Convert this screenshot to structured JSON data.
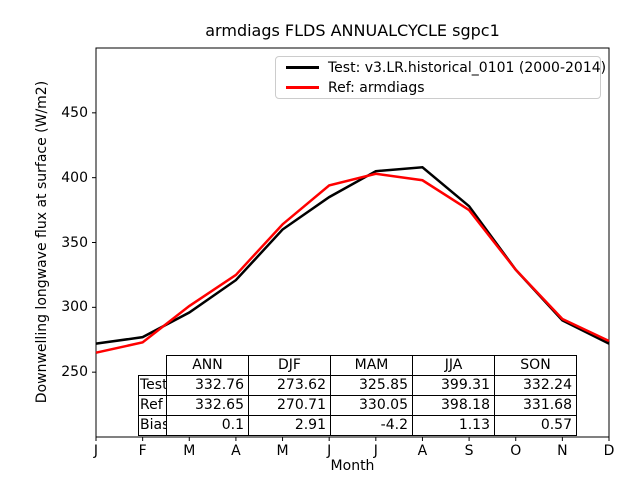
{
  "title": "armdiags FLDS ANNUALCYCLE sgpc1",
  "chart_data": {
    "type": "line",
    "title": "armdiags FLDS ANNUALCYCLE sgpc1",
    "xlabel": "Month",
    "ylabel": "Downwelling longwave flux at surface (W/m2)",
    "x_categories": [
      "J",
      "F",
      "M",
      "A",
      "M",
      "J",
      "J",
      "A",
      "S",
      "O",
      "N",
      "D"
    ],
    "xlim": [
      0,
      11
    ],
    "ylim": [
      200,
      500
    ],
    "yticks": [
      250,
      300,
      350,
      400,
      450
    ],
    "grid": false,
    "legend_position": "upper right",
    "series": [
      {
        "name": "Test: v3.LR.historical_0101 (2000-2014)",
        "color": "#000000",
        "values": [
          272,
          277,
          296,
          321,
          360,
          385,
          405,
          408,
          378,
          329,
          290,
          272
        ]
      },
      {
        "name": "Ref: armdiags",
        "color": "#ff0000",
        "values": [
          265,
          273,
          301,
          325,
          364,
          394,
          403,
          398,
          375,
          329,
          291,
          274
        ]
      }
    ]
  },
  "stats_table": {
    "columns": [
      "ANN",
      "DJF",
      "MAM",
      "JJA",
      "SON"
    ],
    "rows": [
      {
        "label": "Test",
        "values": [
          "332.76",
          "273.62",
          "325.85",
          "399.31",
          "332.24"
        ]
      },
      {
        "label": "Ref",
        "values": [
          "332.65",
          "270.71",
          "330.05",
          "398.18",
          "331.68"
        ]
      },
      {
        "label": "Bias",
        "values": [
          "0.1",
          "2.91",
          "-4.2",
          "1.13",
          "0.57"
        ]
      }
    ]
  }
}
